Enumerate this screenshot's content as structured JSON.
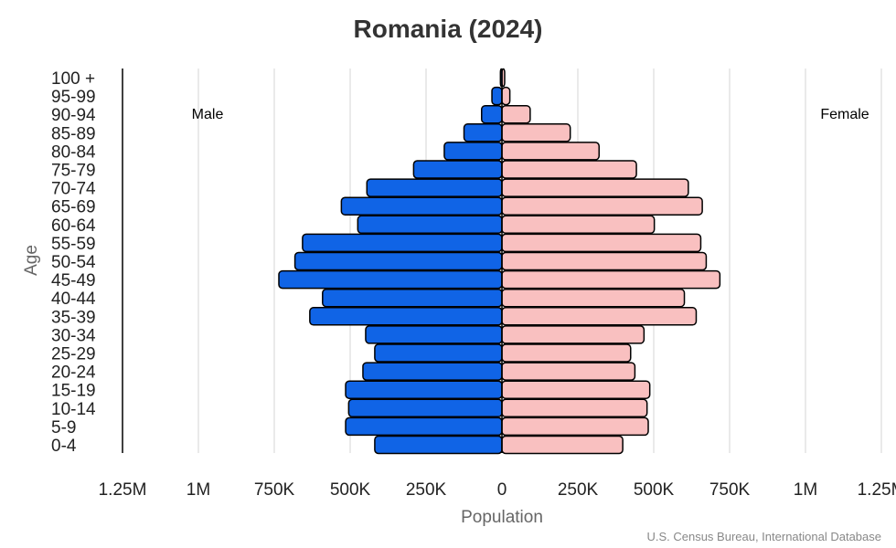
{
  "chart_data": {
    "type": "bar",
    "orientation": "horizontal",
    "title": "Romania (2024)",
    "xlabel": "Population",
    "ylabel": "Age",
    "source": "U.S. Census Bureau, International Database",
    "categories": [
      "0-4",
      "5-9",
      "10-14",
      "15-19",
      "20-24",
      "25-29",
      "30-34",
      "35-39",
      "40-44",
      "45-49",
      "50-54",
      "55-59",
      "60-64",
      "65-69",
      "70-74",
      "75-79",
      "80-84",
      "85-89",
      "90-94",
      "95-99",
      "100 +"
    ],
    "series": [
      {
        "name": "Male",
        "color": "#1064e6",
        "side": "left",
        "values": [
          419000,
          515000,
          505000,
          515000,
          458000,
          419000,
          449000,
          633000,
          591000,
          735000,
          682000,
          657000,
          475000,
          529000,
          445000,
          291000,
          190000,
          125000,
          67000,
          33000,
          5000
        ]
      },
      {
        "name": "Female",
        "color": "#f9c0c0",
        "side": "right",
        "values": [
          398000,
          482000,
          478000,
          487000,
          438000,
          424000,
          468000,
          640000,
          601000,
          718000,
          673000,
          655000,
          502000,
          660000,
          614000,
          443000,
          320000,
          225000,
          93000,
          26000,
          9000
        ]
      }
    ],
    "x_ticks": [
      {
        "value": -1250000,
        "label": "1.25M"
      },
      {
        "value": -1000000,
        "label": "1M"
      },
      {
        "value": -750000,
        "label": "750K"
      },
      {
        "value": -500000,
        "label": "500K"
      },
      {
        "value": -250000,
        "label": "250K"
      },
      {
        "value": 0,
        "label": "0"
      },
      {
        "value": 250000,
        "label": "250K"
      },
      {
        "value": 500000,
        "label": "500K"
      },
      {
        "value": 750000,
        "label": "750K"
      },
      {
        "value": 1000000,
        "label": "1M"
      },
      {
        "value": 1250000,
        "label": "1.25M"
      }
    ],
    "xlim": [
      -1250000,
      1250000
    ],
    "grid": "vertical",
    "legend": "inline-top"
  }
}
